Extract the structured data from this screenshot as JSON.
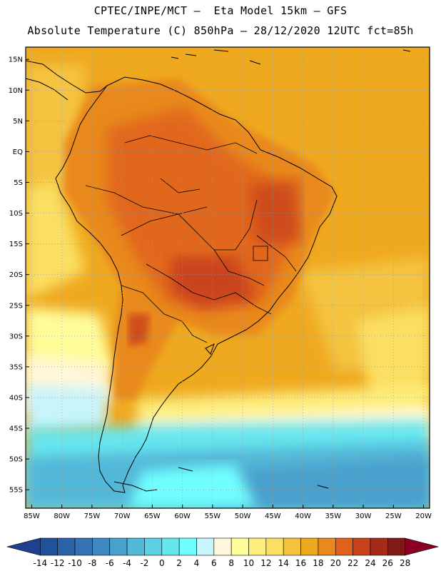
{
  "header": {
    "line1": "CPTEC/INPE/MCT –  Eta Model 15km – GFS",
    "line2": "Absolute Temperature (C) 850hPa – 28/12/2020 12UTC fct=85h"
  },
  "map": {
    "lon_range": [
      -86,
      -19
    ],
    "lat_range": [
      -58,
      17
    ],
    "lat_ticks": [
      {
        "v": 15,
        "label": "15N"
      },
      {
        "v": 10,
        "label": "10N"
      },
      {
        "v": 5,
        "label": "5N"
      },
      {
        "v": 0,
        "label": "EQ"
      },
      {
        "v": -5,
        "label": "5S"
      },
      {
        "v": -10,
        "label": "10S"
      },
      {
        "v": -15,
        "label": "15S"
      },
      {
        "v": -20,
        "label": "20S"
      },
      {
        "v": -25,
        "label": "25S"
      },
      {
        "v": -30,
        "label": "30S"
      },
      {
        "v": -35,
        "label": "35S"
      },
      {
        "v": -40,
        "label": "40S"
      },
      {
        "v": -45,
        "label": "45S"
      },
      {
        "v": -50,
        "label": "50S"
      },
      {
        "v": -55,
        "label": "55S"
      }
    ],
    "lon_ticks": [
      {
        "v": -85,
        "label": "85W"
      },
      {
        "v": -80,
        "label": "80W"
      },
      {
        "v": -75,
        "label": "75W"
      },
      {
        "v": -70,
        "label": "70W"
      },
      {
        "v": -65,
        "label": "65W"
      },
      {
        "v": -60,
        "label": "60W"
      },
      {
        "v": -55,
        "label": "55W"
      },
      {
        "v": -50,
        "label": "50W"
      },
      {
        "v": -45,
        "label": "45W"
      },
      {
        "v": -40,
        "label": "40W"
      },
      {
        "v": -35,
        "label": "35W"
      },
      {
        "v": -30,
        "label": "30W"
      },
      {
        "v": -25,
        "label": "25W"
      },
      {
        "v": -20,
        "label": "20W"
      }
    ]
  },
  "colorbar": {
    "labels": [
      "-14",
      "-12",
      "-10",
      "-8",
      "-6",
      "-4",
      "-2",
      "0",
      "2",
      "4",
      "6",
      "8",
      "10",
      "12",
      "14",
      "16",
      "18",
      "20",
      "22",
      "24",
      "26",
      "28"
    ],
    "colors": [
      "#1f3f8f",
      "#22519c",
      "#2a62a8",
      "#3474b5",
      "#3e88c2",
      "#48a0cc",
      "#52b8d8",
      "#5ccfe2",
      "#66e6ee",
      "#70ffff",
      "#c8f4fb",
      "#fff7dc",
      "#fffc9a",
      "#fdee7e",
      "#fbdf62",
      "#f4c33f",
      "#efa91f",
      "#e9891d",
      "#e0621a",
      "#c7411a",
      "#a52a17",
      "#7f1b16",
      "#8c0025"
    ]
  },
  "colors": {
    "land_boundary": "#000000",
    "grid": "#9a9a9a"
  }
}
